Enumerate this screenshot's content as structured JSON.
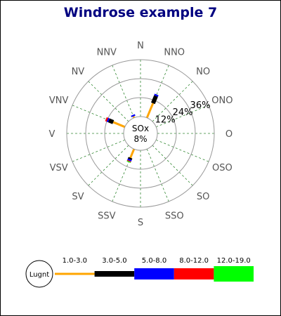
{
  "chart_data": {
    "type": "windrose",
    "title": "Windrose example 7",
    "center_label": "SOx",
    "center_value": "8%",
    "legend_title": "Lugnt",
    "directions": [
      "N",
      "NNO",
      "NO",
      "ONO",
      "O",
      "OSO",
      "SO",
      "SSO",
      "S",
      "SSV",
      "SV",
      "VSV",
      "V",
      "VNV",
      "NV",
      "NNV"
    ],
    "ring_labels": [
      "12%",
      "24%",
      "36%"
    ],
    "ring_values": [
      12,
      24,
      36
    ],
    "range_max": 36,
    "bins": [
      {
        "label": "1.0-3.0",
        "color": "#FFA500"
      },
      {
        "label": "3.0-5.0",
        "color": "#000000"
      },
      {
        "label": "5.0-8.0",
        "color": "#0000FF"
      },
      {
        "label": "8.0-12.0",
        "color": "#FF0000"
      },
      {
        "label": "12.0-19.0",
        "color": "#00FF00"
      }
    ],
    "data": [
      {
        "direction": "NNV",
        "values": [
          1,
          0,
          1,
          0,
          0
        ]
      },
      {
        "direction": "NNO",
        "values": [
          10,
          5,
          1,
          0,
          0
        ]
      },
      {
        "direction": "VNV",
        "values": [
          8,
          3,
          1,
          1,
          0
        ]
      },
      {
        "direction": "SSV",
        "values": [
          6,
          1,
          1,
          0.5,
          0.5
        ]
      }
    ],
    "grid": true,
    "legend_position": "bottom"
  },
  "colors": {
    "title": "#000080",
    "grid_circle": "#999999",
    "grid_spoke": "#338833",
    "dir_label": "#555555",
    "ring_label": "#000000"
  }
}
